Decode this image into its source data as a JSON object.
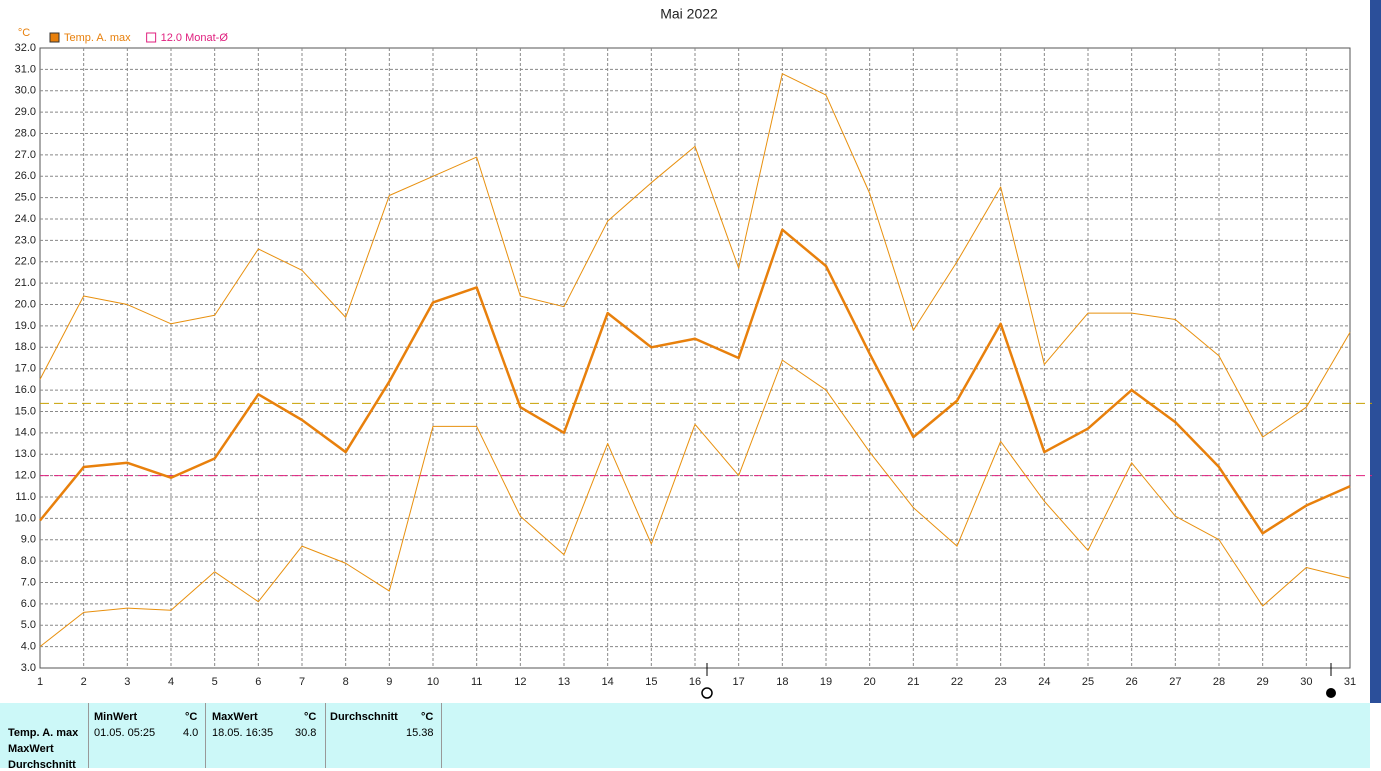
{
  "chart_data": {
    "type": "line",
    "title": "Mai 2022",
    "y_unit": "°C",
    "x": [
      1,
      2,
      3,
      4,
      5,
      6,
      7,
      8,
      9,
      10,
      11,
      12,
      13,
      14,
      15,
      16,
      17,
      18,
      19,
      20,
      21,
      22,
      23,
      24,
      25,
      26,
      27,
      28,
      29,
      30,
      31
    ],
    "xlim": [
      1,
      31
    ],
    "xticks": [
      1,
      2,
      3,
      4,
      5,
      6,
      7,
      8,
      9,
      10,
      11,
      12,
      13,
      14,
      15,
      16,
      17,
      18,
      19,
      20,
      21,
      22,
      23,
      24,
      25,
      26,
      27,
      28,
      29,
      30,
      31
    ],
    "ylim": [
      3,
      32
    ],
    "yticks": [
      {
        "value": 3,
        "label": "3.0"
      },
      {
        "value": 4,
        "label": "4.0"
      },
      {
        "value": 5,
        "label": "5.0"
      },
      {
        "value": 6,
        "label": "6.0"
      },
      {
        "value": 7,
        "label": "7.0"
      },
      {
        "value": 8,
        "label": "8.0"
      },
      {
        "value": 9,
        "label": "9.0"
      },
      {
        "value": 10,
        "label": "10.0"
      },
      {
        "value": 11,
        "label": "11.0"
      },
      {
        "value": 12,
        "label": "12.0"
      },
      {
        "value": 13,
        "label": "13.0"
      },
      {
        "value": 14,
        "label": "14.0"
      },
      {
        "value": 15,
        "label": "15.0"
      },
      {
        "value": 16,
        "label": "16.0"
      },
      {
        "value": 17,
        "label": "17.0"
      },
      {
        "value": 18,
        "label": "18.0"
      },
      {
        "value": 19,
        "label": "19.0"
      },
      {
        "value": 20,
        "label": "20.0"
      },
      {
        "value": 21,
        "label": "21.0"
      },
      {
        "value": 22,
        "label": "22.0"
      },
      {
        "value": 23,
        "label": "23.0"
      },
      {
        "value": 24,
        "label": "24.0"
      },
      {
        "value": 25,
        "label": "25.0"
      },
      {
        "value": 26,
        "label": "26.0"
      },
      {
        "value": 27,
        "label": "27.0"
      },
      {
        "value": 28,
        "label": "28.0"
      },
      {
        "value": 29,
        "label": "29.0"
      },
      {
        "value": 30,
        "label": "30.0"
      },
      {
        "value": 31,
        "label": "31.0"
      },
      {
        "value": 32,
        "label": "32.0"
      }
    ],
    "grid": true,
    "series": [
      {
        "name": "Temp. A. max",
        "color": "#e8800c",
        "width": 2.5,
        "values": [
          9.9,
          12.4,
          12.6,
          11.9,
          12.8,
          15.8,
          14.6,
          13.1,
          16.4,
          20.1,
          20.8,
          15.2,
          14.0,
          19.6,
          18.0,
          18.4,
          17.5,
          23.5,
          21.8,
          17.7,
          13.8,
          15.5,
          19.1,
          13.1,
          14.2,
          16.0,
          14.5,
          12.4,
          9.3,
          10.6,
          11.5
        ]
      },
      {
        "color": "#e8900e",
        "width": 1,
        "values": [
          16.5,
          20.4,
          20.0,
          19.1,
          19.5,
          22.6,
          21.6,
          19.4,
          25.1,
          26.0,
          26.9,
          20.4,
          19.9,
          23.9,
          25.7,
          27.4,
          21.7,
          30.8,
          29.8,
          25.2,
          18.8,
          22.0,
          25.5,
          17.2,
          19.6,
          19.6,
          19.3,
          17.6,
          13.8,
          15.2,
          18.7
        ]
      },
      {
        "color": "#e8900e",
        "width": 1,
        "values": [
          4.0,
          5.6,
          5.8,
          5.7,
          7.5,
          6.1,
          8.7,
          7.9,
          6.6,
          14.3,
          14.3,
          10.1,
          8.3,
          13.5,
          8.8,
          14.4,
          12.0,
          17.4,
          16.0,
          13.1,
          10.5,
          8.7,
          13.6,
          10.8,
          8.5,
          12.6,
          10.1,
          9.0,
          5.9,
          7.7,
          7.2
        ]
      }
    ],
    "reference_lines": [
      {
        "name": "12.0 Monat-Ø",
        "value": 12.0,
        "color": "#e0207f"
      },
      {
        "value": 15.38,
        "color": "#c8a000"
      }
    ]
  },
  "table": {
    "row_labels": [
      "Temp. A. max",
      "MaxWert",
      "Durchschnitt"
    ],
    "columns": [
      {
        "header": "MinWert",
        "unit": "°C",
        "when": "01.05.  05:25",
        "value": "4.0"
      },
      {
        "header": "MaxWert",
        "unit": "°C",
        "when": "18.05.  16:35",
        "value": "30.8"
      },
      {
        "header": "Durchschnitt",
        "unit": "°C",
        "value": "15.38"
      }
    ]
  }
}
